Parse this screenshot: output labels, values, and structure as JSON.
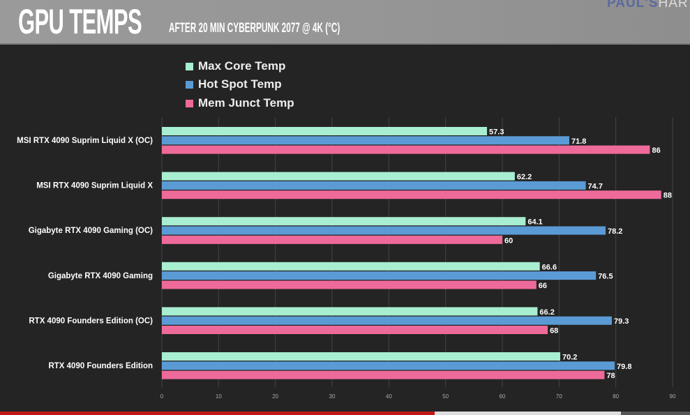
{
  "header": {
    "title": "GPU TEMPS",
    "subtitle": "AFTER 20 MIN CYBERPUNK 2077 @ 4K (°C)",
    "brand_a": "PAUL'S",
    "brand_b": "HAR"
  },
  "chart_data": {
    "type": "bar",
    "orientation": "horizontal",
    "title": "GPU TEMPS",
    "subtitle": "AFTER 20 MIN CYBERPUNK 2077 @ 4K (°C)",
    "categories": [
      "MSI RTX 4090 Suprim Liquid X (OC)",
      "MSI RTX 4090 Suprim Liquid X",
      "Gigabyte RTX 4090 Gaming (OC)",
      "Gigabyte RTX 4090 Gaming",
      "RTX 4090 Founders Edition (OC)",
      "RTX 4090 Founders Edition"
    ],
    "series": [
      {
        "name": "Max Core Temp",
        "color": "#a8eed0",
        "values": [
          57.3,
          62.2,
          64.1,
          66.6,
          66.2,
          70.2
        ]
      },
      {
        "name": "Hot Spot Temp",
        "color": "#5b9bd5",
        "values": [
          71.8,
          74.7,
          78.2,
          76.5,
          79.3,
          79.8
        ]
      },
      {
        "name": "Mem Junct Temp",
        "color": "#ee6a9a",
        "values": [
          86,
          88,
          60,
          66,
          68,
          78
        ]
      }
    ],
    "xlim": [
      0,
      90
    ],
    "xticks": [
      "0",
      "10",
      "20",
      "30",
      "40",
      "50",
      "60",
      "70",
      "80",
      "90"
    ],
    "grid": true,
    "legend": "top-left"
  }
}
